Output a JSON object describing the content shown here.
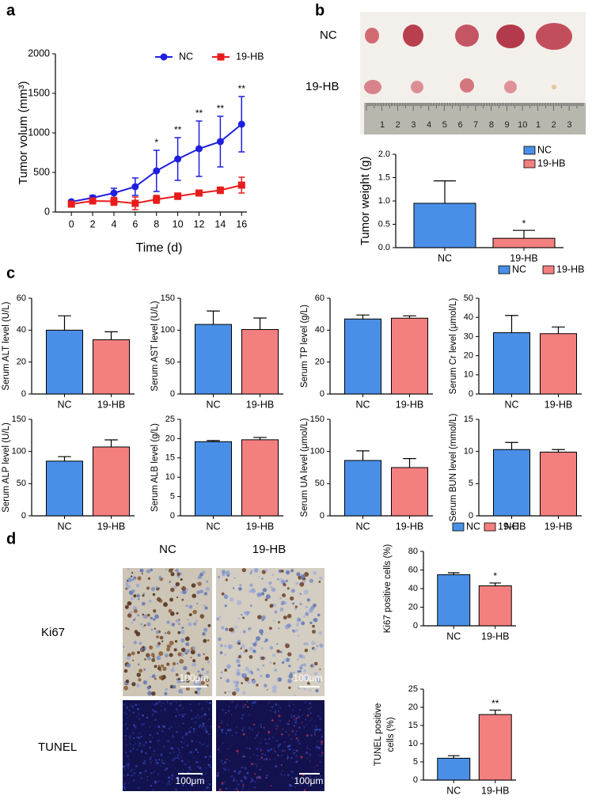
{
  "panel_labels": [
    "a",
    "b",
    "c",
    "d"
  ],
  "photo": {
    "row_labels": [
      "NC",
      "19-HB"
    ],
    "ruler_labels": [
      "1",
      "2",
      "3",
      "4",
      "5",
      "6",
      "7",
      "8",
      "9",
      "10",
      "1",
      "2",
      "3"
    ]
  },
  "histology": {
    "column_labels": [
      "NC",
      "19-HB"
    ],
    "row_labels": [
      "Ki67",
      "TUNEL"
    ],
    "scale_bar": "100μm"
  },
  "chart_data": [
    {
      "type": "line",
      "xlabel": "Time (d)",
      "ylabel": "Tumor volum (mm³)",
      "x": [
        0,
        2,
        4,
        6,
        8,
        10,
        12,
        14,
        16
      ],
      "xlim": [
        -1.5,
        16.5
      ],
      "xticks": [
        0,
        2,
        4,
        6,
        8,
        10,
        12,
        14,
        16
      ],
      "ylim": [
        0,
        2000
      ],
      "yticks": [
        0,
        500,
        1000,
        1500,
        2000
      ],
      "legend": "top-right",
      "series": [
        {
          "name": "NC",
          "color": "#1f1fe0",
          "marker": "circle",
          "values": [
            130,
            180,
            240,
            320,
            520,
            670,
            800,
            890,
            1110
          ],
          "errors": [
            20,
            30,
            60,
            110,
            260,
            270,
            350,
            320,
            350
          ]
        },
        {
          "name": "19-HB",
          "color": "#e81c1c",
          "marker": "square",
          "values": [
            100,
            140,
            135,
            110,
            160,
            200,
            240,
            275,
            340
          ],
          "errors": [
            20,
            25,
            50,
            80,
            50,
            40,
            30,
            40,
            100
          ]
        }
      ],
      "significance": [
        null,
        null,
        null,
        null,
        "*",
        "**",
        "**",
        "**",
        "**"
      ]
    },
    {
      "type": "bar",
      "ylabel": "Tumor weight (g)",
      "categories": [
        "NC",
        "19-HB"
      ],
      "values": [
        0.95,
        0.2
      ],
      "errors": [
        0.48,
        0.17
      ],
      "colors": [
        "#4a8fe7",
        "#f47f7f"
      ],
      "ylim": [
        0,
        2
      ],
      "yticks": [
        {
          "value": 0,
          "label": "0.0"
        },
        0.5,
        {
          "value": 1,
          "label": "1.0"
        },
        1.5,
        {
          "value": 2,
          "label": "2.0"
        }
      ],
      "significance": [
        null,
        "*"
      ],
      "legend": "top-right"
    },
    {
      "type": "bar",
      "ylabel": "Serum ALT level (U/L)",
      "categories": [
        "NC",
        "19-HB"
      ],
      "values": [
        40,
        34
      ],
      "errors": [
        9,
        5
      ],
      "colors": [
        "#4a8fe7",
        "#f47f7f"
      ],
      "ylim": [
        0,
        60
      ],
      "yticks": [
        0,
        20,
        40,
        60
      ]
    },
    {
      "type": "bar",
      "ylabel": "Serum AST level (U/L)",
      "categories": [
        "NC",
        "19-HB"
      ],
      "values": [
        109,
        101
      ],
      "errors": [
        21,
        18
      ],
      "colors": [
        "#4a8fe7",
        "#f47f7f"
      ],
      "ylim": [
        0,
        150
      ],
      "yticks": [
        0,
        50,
        100,
        150
      ]
    },
    {
      "type": "bar",
      "ylabel": "Serum TP level (g/L)",
      "categories": [
        "NC",
        "19-HB"
      ],
      "values": [
        47,
        47.5
      ],
      "errors": [
        2.5,
        1.5
      ],
      "colors": [
        "#4a8fe7",
        "#f47f7f"
      ],
      "ylim": [
        0,
        60
      ],
      "yticks": [
        0,
        20,
        40,
        60
      ]
    },
    {
      "type": "bar",
      "ylabel": "Serum Cr level (μmol/L)",
      "categories": [
        "NC",
        "19-HB"
      ],
      "values": [
        32,
        31.5
      ],
      "errors": [
        9,
        3.5
      ],
      "colors": [
        "#4a8fe7",
        "#f47f7f"
      ],
      "ylim": [
        0,
        50
      ],
      "yticks": [
        0,
        10,
        20,
        30,
        40,
        50
      ],
      "legend": "top-right"
    },
    {
      "type": "bar",
      "ylabel": "Serum ALP level (U/L)",
      "categories": [
        "NC",
        "19-HB"
      ],
      "values": [
        85,
        107
      ],
      "errors": [
        7,
        11
      ],
      "colors": [
        "#4a8fe7",
        "#f47f7f"
      ],
      "ylim": [
        0,
        150
      ],
      "yticks": [
        0,
        50,
        100,
        150
      ]
    },
    {
      "type": "bar",
      "ylabel": "Serum ALB level (g/L)",
      "categories": [
        "NC",
        "19-HB"
      ],
      "values": [
        19.2,
        19.7
      ],
      "errors": [
        0.3,
        0.6
      ],
      "colors": [
        "#4a8fe7",
        "#f47f7f"
      ],
      "ylim": [
        0,
        25
      ],
      "yticks": [
        0,
        5,
        10,
        15,
        20,
        25
      ]
    },
    {
      "type": "bar",
      "ylabel": "Serum UA level (μmol/L)",
      "categories": [
        "NC",
        "19-HB"
      ],
      "values": [
        86,
        75
      ],
      "errors": [
        15,
        14
      ],
      "colors": [
        "#4a8fe7",
        "#f47f7f"
      ],
      "ylim": [
        0,
        150
      ],
      "yticks": [
        0,
        50,
        100,
        150
      ]
    },
    {
      "type": "bar",
      "ylabel": "Serum BUN level (mmol/L)",
      "categories": [
        "NC",
        "19-HB"
      ],
      "values": [
        10.3,
        9.9
      ],
      "errors": [
        1.1,
        0.4
      ],
      "colors": [
        "#4a8fe7",
        "#f47f7f"
      ],
      "ylim": [
        0,
        15
      ],
      "yticks": [
        0,
        5,
        10,
        15
      ]
    },
    {
      "type": "bar",
      "ylabel": "Ki67 positive cells (%)",
      "categories": [
        "NC",
        "19-HB"
      ],
      "values": [
        55,
        43
      ],
      "errors": [
        2,
        3
      ],
      "colors": [
        "#4a8fe7",
        "#f47f7f"
      ],
      "ylim": [
        0,
        80
      ],
      "yticks": [
        0,
        20,
        40,
        60,
        80
      ],
      "significance": [
        null,
        "*"
      ],
      "legend": "top"
    },
    {
      "type": "bar",
      "ylabel": [
        "TUNEL positive",
        "cells (%)"
      ],
      "categories": [
        "NC",
        "19-HB"
      ],
      "values": [
        6,
        18
      ],
      "errors": [
        0.7,
        1.2
      ],
      "colors": [
        "#4a8fe7",
        "#f47f7f"
      ],
      "ylim": [
        0,
        25
      ],
      "yticks": [
        0,
        5,
        10,
        15,
        20,
        25
      ],
      "significance": [
        null,
        "**"
      ]
    }
  ]
}
